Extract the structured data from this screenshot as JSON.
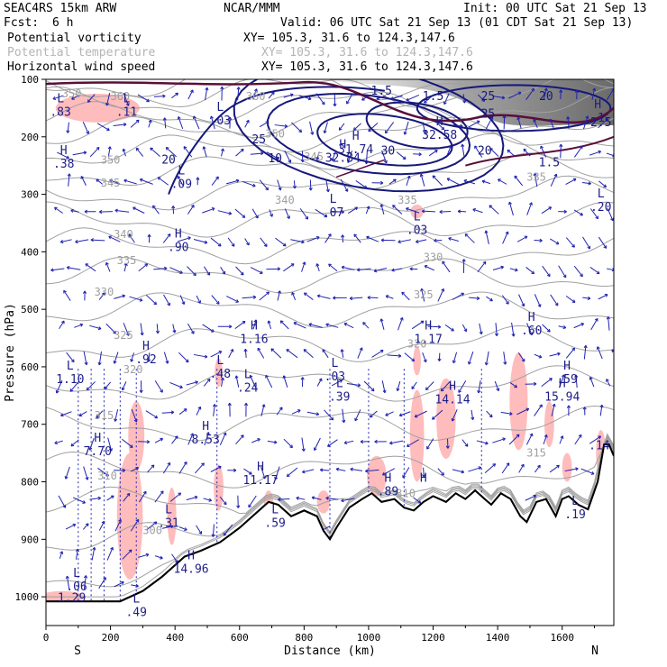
{
  "header": {
    "model": "SEAC4RS 15km ARW",
    "center": "NCAR/MMM",
    "init": "Init: 00 UTC Sat 21 Sep 13",
    "fcst_label": "Fcst:",
    "fcst_value": "6 h",
    "valid": "Valid: 06 UTC Sat 21 Sep 13 (01 CDT Sat 21 Sep 13)",
    "fields": [
      {
        "name": "Potential vorticity",
        "xy": "XY= 105.3, 31.6 to 124.3,147.6",
        "color": "#000000"
      },
      {
        "name": "Potential temperature",
        "xy": "XY= 105.3, 31.6 to 124.3,147.6",
        "color": "#b4b4b4"
      },
      {
        "name": "Horizontal wind speed",
        "xy": "XY= 105.3, 31.6 to 124.3,147.6",
        "color": "#000000"
      }
    ]
  },
  "chart_data": {
    "type": "cross-section",
    "xlabel": "Distance (km)",
    "ylabel": "Pressure (hPa)",
    "x_ticks": [
      0,
      200,
      400,
      600,
      800,
      1000,
      1200,
      1400,
      1600
    ],
    "y_ticks": [
      100,
      200,
      300,
      400,
      500,
      600,
      700,
      800,
      900,
      1000
    ],
    "xlim": [
      0,
      1760
    ],
    "ylim": [
      1050,
      100
    ],
    "x_end_labels": {
      "left": "S",
      "right": "N"
    },
    "colors": {
      "theta": "#a0a0a0",
      "wind_speed": "#16187a",
      "pv": "#5a0f3a",
      "pv_shade": "#ffbcbc",
      "terrain": "#000000",
      "vectors": "#1f22b0",
      "extrema": "#1c1c8a"
    },
    "theta_labels": [
      {
        "x": 230,
        "p": 130,
        "v": "360"
      },
      {
        "x": 80,
        "p": 125,
        "v": "350"
      },
      {
        "x": 200,
        "p": 240,
        "v": "350"
      },
      {
        "x": 650,
        "p": 130,
        "v": "360"
      },
      {
        "x": 710,
        "p": 195,
        "v": "350"
      },
      {
        "x": 830,
        "p": 235,
        "v": "345"
      },
      {
        "x": 200,
        "p": 280,
        "v": "345"
      },
      {
        "x": 740,
        "p": 310,
        "v": "340"
      },
      {
        "x": 1120,
        "p": 310,
        "v": "335"
      },
      {
        "x": 240,
        "p": 370,
        "v": "340"
      },
      {
        "x": 1200,
        "p": 410,
        "v": "330"
      },
      {
        "x": 250,
        "p": 415,
        "v": "335"
      },
      {
        "x": 180,
        "p": 470,
        "v": "330"
      },
      {
        "x": 1170,
        "p": 475,
        "v": "325"
      },
      {
        "x": 240,
        "p": 545,
        "v": "325"
      },
      {
        "x": 1150,
        "p": 560,
        "v": "320"
      },
      {
        "x": 270,
        "p": 605,
        "v": "320"
      },
      {
        "x": 180,
        "p": 685,
        "v": "315"
      },
      {
        "x": 1520,
        "p": 750,
        "v": "315"
      },
      {
        "x": 190,
        "p": 790,
        "v": "310"
      },
      {
        "x": 330,
        "p": 885,
        "v": "300"
      },
      {
        "x": 1115,
        "p": 820,
        "v": "310"
      },
      {
        "x": 1520,
        "p": 270,
        "v": "335"
      }
    ],
    "wind_speed_labels": [
      {
        "x": 660,
        "p": 205,
        "v": "25"
      },
      {
        "x": 710,
        "p": 238,
        "v": "10"
      },
      {
        "x": 1060,
        "p": 225,
        "v": "30"
      },
      {
        "x": 1370,
        "p": 160,
        "v": "25"
      },
      {
        "x": 1360,
        "p": 225,
        "v": "20"
      },
      {
        "x": 1550,
        "p": 130,
        "v": "20"
      },
      {
        "x": 1370,
        "p": 130,
        "v": "25"
      },
      {
        "x": 1560,
        "p": 245,
        "v": "1.5"
      },
      {
        "x": 1200,
        "p": 130,
        "v": "1.5"
      },
      {
        "x": 1040,
        "p": 120,
        "v": "1.5"
      },
      {
        "x": 1720,
        "p": 175,
        "v": "2.5"
      },
      {
        "x": 380,
        "p": 240,
        "v": "20"
      }
    ],
    "extrema": [
      {
        "x": 45,
        "p": 140,
        "t": "L",
        "v": ".83"
      },
      {
        "x": 250,
        "p": 140,
        "t": "L",
        "v": ".11"
      },
      {
        "x": 540,
        "p": 155,
        "t": "L",
        "v": ".03"
      },
      {
        "x": 55,
        "p": 230,
        "t": "H",
        "v": ".38"
      },
      {
        "x": 420,
        "p": 265,
        "t": "L",
        "v": ".09"
      },
      {
        "x": 920,
        "p": 220,
        "t": "H",
        "v": "32.84"
      },
      {
        "x": 1220,
        "p": 180,
        "t": "H",
        "v": "32.58"
      },
      {
        "x": 960,
        "p": 205,
        "t": "H",
        "v": "31.74"
      },
      {
        "x": 890,
        "p": 315,
        "t": "L",
        "v": ".07"
      },
      {
        "x": 1150,
        "p": 345,
        "t": "L",
        "v": ".03"
      },
      {
        "x": 410,
        "p": 375,
        "t": "H",
        "v": ".90"
      },
      {
        "x": 1720,
        "p": 305,
        "t": "L",
        "v": ".20"
      },
      {
        "x": 1710,
        "p": 150,
        "t": "H",
        "v": ".1"
      },
      {
        "x": 645,
        "p": 535,
        "t": "H",
        "v": "1.16"
      },
      {
        "x": 1185,
        "p": 535,
        "t": "H",
        "v": "1.17"
      },
      {
        "x": 1505,
        "p": 520,
        "t": "H",
        "v": ".60"
      },
      {
        "x": 310,
        "p": 570,
        "t": "H",
        "v": ".92"
      },
      {
        "x": 75,
        "p": 605,
        "t": "L",
        "v": "1.10"
      },
      {
        "x": 540,
        "p": 595,
        "t": "L",
        "v": ".48"
      },
      {
        "x": 625,
        "p": 620,
        "t": "L",
        "v": ".24"
      },
      {
        "x": 895,
        "p": 600,
        "t": "L",
        "v": ".03"
      },
      {
        "x": 910,
        "p": 635,
        "t": "L",
        "v": ".39"
      },
      {
        "x": 1615,
        "p": 605,
        "t": "H",
        "v": ".59"
      },
      {
        "x": 1600,
        "p": 635,
        "t": "H",
        "v": "15.94"
      },
      {
        "x": 1260,
        "p": 640,
        "t": "H",
        "v": "14.14"
      },
      {
        "x": 495,
        "p": 710,
        "t": "H",
        "v": "8.53"
      },
      {
        "x": 160,
        "p": 730,
        "t": "H",
        "v": "7.70"
      },
      {
        "x": 665,
        "p": 780,
        "t": "H",
        "v": "11.17"
      },
      {
        "x": 1060,
        "p": 800,
        "t": "H",
        "v": ".89"
      },
      {
        "x": 1170,
        "p": 800,
        "t": "H",
        "v": ""
      },
      {
        "x": 380,
        "p": 855,
        "t": "L",
        "v": ".31"
      },
      {
        "x": 710,
        "p": 855,
        "t": "L",
        "v": ".59"
      },
      {
        "x": 450,
        "p": 935,
        "t": "H",
        "v": "14.96"
      },
      {
        "x": 95,
        "p": 965,
        "t": "L",
        "v": ".06"
      },
      {
        "x": 80,
        "p": 985,
        "t": "",
        "v": "1.29"
      },
      {
        "x": 280,
        "p": 1010,
        "t": "L",
        "v": ".49"
      },
      {
        "x": 1640,
        "p": 840,
        "t": "L",
        "v": ".19"
      },
      {
        "x": 1715,
        "p": 720,
        "t": "",
        "v": ".14"
      }
    ],
    "terrain": [
      [
        0,
        1008
      ],
      [
        230,
        1008
      ],
      [
        300,
        990
      ],
      [
        360,
        965
      ],
      [
        430,
        930
      ],
      [
        480,
        920
      ],
      [
        540,
        905
      ],
      [
        600,
        880
      ],
      [
        650,
        855
      ],
      [
        690,
        835
      ],
      [
        720,
        840
      ],
      [
        760,
        860
      ],
      [
        800,
        850
      ],
      [
        840,
        860
      ],
      [
        860,
        885
      ],
      [
        880,
        900
      ],
      [
        900,
        880
      ],
      [
        940,
        845
      ],
      [
        980,
        830
      ],
      [
        1010,
        820
      ],
      [
        1040,
        835
      ],
      [
        1080,
        830
      ],
      [
        1110,
        845
      ],
      [
        1140,
        850
      ],
      [
        1170,
        835
      ],
      [
        1200,
        825
      ],
      [
        1240,
        835
      ],
      [
        1270,
        820
      ],
      [
        1300,
        830
      ],
      [
        1330,
        815
      ],
      [
        1360,
        830
      ],
      [
        1380,
        840
      ],
      [
        1410,
        820
      ],
      [
        1440,
        830
      ],
      [
        1470,
        860
      ],
      [
        1490,
        870
      ],
      [
        1520,
        835
      ],
      [
        1550,
        830
      ],
      [
        1580,
        860
      ],
      [
        1600,
        830
      ],
      [
        1620,
        825
      ],
      [
        1650,
        840
      ],
      [
        1680,
        848
      ],
      [
        1710,
        800
      ],
      [
        1730,
        735
      ],
      [
        1745,
        735
      ],
      [
        1760,
        755
      ]
    ],
    "pv_shades": [
      {
        "cx": 160,
        "cy": 150,
        "rx": 130,
        "ry": 25
      },
      {
        "cx": 50,
        "cy": 1000,
        "rx": 70,
        "ry": 10
      },
      {
        "cx": 260,
        "cy": 860,
        "rx": 40,
        "ry": 110
      },
      {
        "cx": 280,
        "cy": 720,
        "rx": 25,
        "ry": 60
      },
      {
        "cx": 390,
        "cy": 860,
        "rx": 14,
        "ry": 50
      },
      {
        "cx": 535,
        "cy": 810,
        "rx": 15,
        "ry": 40
      },
      {
        "cx": 535,
        "cy": 610,
        "rx": 12,
        "ry": 25
      },
      {
        "cx": 690,
        "cy": 840,
        "rx": 15,
        "ry": 25
      },
      {
        "cx": 860,
        "cy": 835,
        "rx": 20,
        "ry": 20
      },
      {
        "cx": 1025,
        "cy": 790,
        "rx": 30,
        "ry": 35
      },
      {
        "cx": 1150,
        "cy": 720,
        "rx": 22,
        "ry": 80
      },
      {
        "cx": 1240,
        "cy": 690,
        "rx": 30,
        "ry": 70
      },
      {
        "cx": 1150,
        "cy": 590,
        "rx": 12,
        "ry": 25
      },
      {
        "cx": 1465,
        "cy": 660,
        "rx": 28,
        "ry": 85
      },
      {
        "cx": 1560,
        "cy": 700,
        "rx": 15,
        "ry": 40
      },
      {
        "cx": 1615,
        "cy": 775,
        "rx": 15,
        "ry": 25
      },
      {
        "cx": 1720,
        "cy": 750,
        "rx": 15,
        "ry": 40
      },
      {
        "cx": 1150,
        "cy": 330,
        "rx": 20,
        "ry": 12
      }
    ]
  }
}
